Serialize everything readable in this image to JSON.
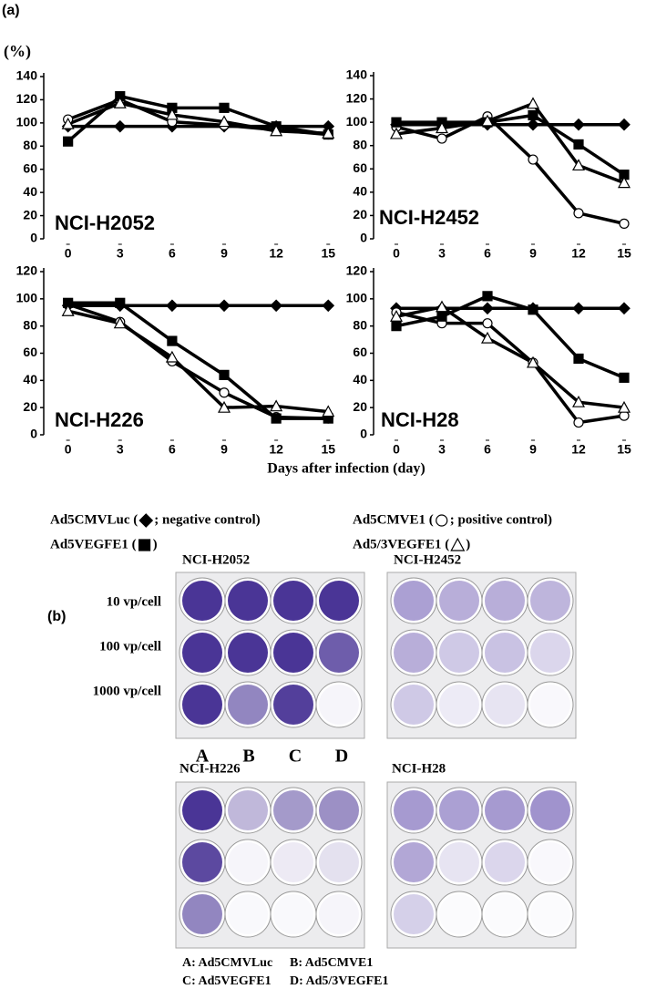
{
  "panel_a_label": "(a)",
  "y_unit": "(%)",
  "x_axis_label": "Days after infection (day)",
  "chart_data": [
    {
      "type": "line",
      "title": "NCI-H2052",
      "x": [
        0,
        3,
        6,
        9,
        12,
        15
      ],
      "xlim": [
        -1.4,
        16.3
      ],
      "xticks": [
        0,
        3,
        6,
        9,
        12,
        15
      ],
      "ylim": [
        0,
        140
      ],
      "yticks": [
        0,
        20,
        40,
        60,
        80,
        100,
        120,
        140
      ],
      "series": [
        {
          "marker": "diamond",
          "color": "#000000",
          "values": [
            97,
            97,
            97,
            97,
            97,
            97
          ]
        },
        {
          "marker": "circle",
          "color": "#000000",
          "values": [
            103,
            120,
            101,
            98,
            94,
            90
          ]
        },
        {
          "marker": "square",
          "color": "#000000",
          "values": [
            84,
            123,
            113,
            113,
            97,
            90
          ]
        },
        {
          "marker": "triangle",
          "color": "#000000",
          "values": [
            99,
            117,
            107,
            101,
            93,
            91
          ]
        }
      ]
    },
    {
      "type": "line",
      "title": "NCI-H2452",
      "x": [
        0,
        3,
        6,
        9,
        12,
        15
      ],
      "xlim": [
        -1.5,
        16.2
      ],
      "xticks": [
        0,
        3,
        6,
        9,
        12,
        15
      ],
      "ylim": [
        0,
        140
      ],
      "yticks": [
        0,
        20,
        40,
        60,
        80,
        100,
        120,
        140
      ],
      "series": [
        {
          "marker": "diamond",
          "color": "#000000",
          "values": [
            98,
            98,
            98,
            98,
            98,
            98
          ]
        },
        {
          "marker": "circle",
          "color": "#000000",
          "values": [
            96,
            86,
            105,
            68,
            22,
            13
          ]
        },
        {
          "marker": "square",
          "color": "#000000",
          "values": [
            100,
            100,
            100,
            106,
            81,
            55
          ]
        },
        {
          "marker": "triangle",
          "color": "#000000",
          "values": [
            90,
            95,
            101,
            116,
            63,
            48
          ]
        }
      ]
    },
    {
      "type": "line",
      "title": "NCI-H226",
      "x": [
        0,
        3,
        6,
        9,
        12,
        15
      ],
      "xlim": [
        -1.4,
        16.3
      ],
      "xticks": [
        0,
        3,
        6,
        9,
        12,
        15
      ],
      "ylim": [
        0,
        120
      ],
      "yticks": [
        0,
        20,
        40,
        60,
        80,
        100,
        120
      ],
      "series": [
        {
          "marker": "diamond",
          "color": "#000000",
          "values": [
            95,
            95,
            95,
            95,
            95,
            95
          ]
        },
        {
          "marker": "circle",
          "color": "#000000",
          "values": [
            96,
            83,
            54,
            31,
            13,
            12
          ]
        },
        {
          "marker": "square",
          "color": "#000000",
          "values": [
            97,
            97,
            69,
            44,
            12,
            12
          ]
        },
        {
          "marker": "triangle",
          "color": "#000000",
          "values": [
            91,
            82,
            57,
            20,
            21,
            17
          ]
        }
      ]
    },
    {
      "type": "line",
      "title": "NCI-H28",
      "x": [
        0,
        3,
        6,
        9,
        12,
        15
      ],
      "xlim": [
        -1.5,
        16.2
      ],
      "xticks": [
        0,
        3,
        6,
        9,
        12,
        15
      ],
      "ylim": [
        0,
        120
      ],
      "yticks": [
        0,
        20,
        40,
        60,
        80,
        100,
        120
      ],
      "series": [
        {
          "marker": "diamond",
          "color": "#000000",
          "values": [
            93,
            93,
            93,
            93,
            93,
            93
          ]
        },
        {
          "marker": "circle",
          "color": "#000000",
          "values": [
            90,
            82,
            82,
            53,
            9,
            14
          ]
        },
        {
          "marker": "square",
          "color": "#000000",
          "values": [
            80,
            87,
            102,
            92,
            56,
            42
          ]
        },
        {
          "marker": "triangle",
          "color": "#000000",
          "values": [
            87,
            94,
            71,
            53,
            24,
            20
          ]
        }
      ]
    }
  ],
  "legend": [
    {
      "text": "Ad5CMVLuc (",
      "marker": "diamond",
      "note": "; negative control)"
    },
    {
      "text": "Ad5CMVE1 (",
      "marker": "circle",
      "note": "; positive control)"
    },
    {
      "text": "Ad5VEGFE1 (",
      "marker": "square",
      "note": ")"
    },
    {
      "text": "Ad5/3VEGFE1 (",
      "marker": "triangle",
      "note": ")"
    }
  ],
  "panel_b": {
    "label": "(b)",
    "plates": [
      "NCI-H2052",
      "NCI-H2452",
      "NCI-H226",
      "NCI-H28"
    ],
    "row_labels": [
      "10 vp/cell",
      "100 vp/cell",
      "1000 vp/cell"
    ],
    "column_letters": [
      "A",
      "B",
      "C",
      "D"
    ],
    "key": [
      "A: Ad5CMVLuc",
      "B: Ad5CMVE1",
      "C: Ad5VEGFE1",
      "D: Ad5/3VEGFE1"
    ]
  }
}
